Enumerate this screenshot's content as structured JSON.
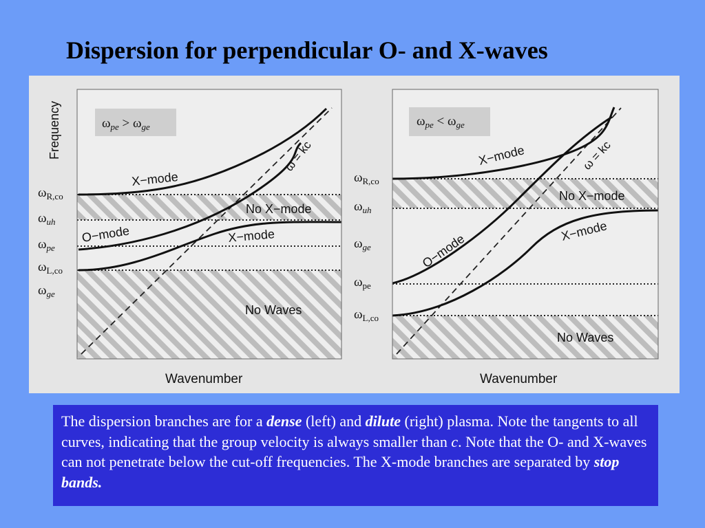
{
  "title": "Dispersion for perpendicular O- and X-waves",
  "left_panel": {
    "condition_lhs": "ω",
    "condition_lhs_sub": "pe",
    "condition_op": " > ",
    "condition_rhs": "ω",
    "condition_rhs_sub": "ge",
    "y_axis_label": "Frequency",
    "x_axis_label": "Wavenumber",
    "level_labels": [
      {
        "sym": "ω",
        "sub": "R,co",
        "italic_sub": false
      },
      {
        "sym": "ω",
        "sub": "uh",
        "italic_sub": true
      },
      {
        "sym": "ω",
        "sub": "pe",
        "italic_sub": true
      },
      {
        "sym": "ω",
        "sub": "L,co",
        "italic_sub": false
      },
      {
        "sym": "ω",
        "sub": "ge",
        "italic_sub": true
      }
    ],
    "curve_labels": {
      "x_mode_upper": "X−mode",
      "x_mode_lower": "X−mode",
      "o_mode": "O−mode",
      "light_line": "ω = kc"
    },
    "region_labels": {
      "stop_band": "No  X−mode",
      "cutoff": "No  Waves"
    }
  },
  "right_panel": {
    "condition_lhs": "ω",
    "condition_lhs_sub": "pe",
    "condition_op": " < ",
    "condition_rhs": "ω",
    "condition_rhs_sub": "ge",
    "x_axis_label": "Wavenumber",
    "level_labels": [
      {
        "sym": "ω",
        "sub": "R,co",
        "italic_sub": false
      },
      {
        "sym": "ω",
        "sub": "uh",
        "italic_sub": true
      },
      {
        "sym": "ω",
        "sub": "ge",
        "italic_sub": true
      },
      {
        "sym": "ω",
        "sub": "pe",
        "italic_sub": false
      },
      {
        "sym": "ω",
        "sub": "L,co",
        "italic_sub": false
      }
    ],
    "curve_labels": {
      "x_mode_upper": "X−mode",
      "x_mode_lower": "X−mode",
      "o_mode": "O−mode",
      "light_line": "ω = kc"
    },
    "region_labels": {
      "stop_band": "No  X−mode",
      "cutoff": "No  Waves"
    }
  },
  "caption": {
    "p1": "The dispersion branches are for a ",
    "dense": "dense",
    "p2": " (left) and ",
    "dilute": "dilute",
    "p3": " (right) plasma. Note the tangents to all curves, indicating that the group velocity is always smaller than ",
    "c": "c",
    "p4": ".  Note that the O- and X-waves can not penetrate below the cut-off  frequencies. The X-mode branches are separated by ",
    "stop_bands": "stop bands."
  },
  "colors": {
    "background": "#6c9cf8",
    "figure_background": "#e5e5e5",
    "plot_background": "#eeeeee",
    "hatch": "#bdbdbd",
    "caption_background": "#2d2dd6",
    "caption_text": "#ffffff"
  }
}
